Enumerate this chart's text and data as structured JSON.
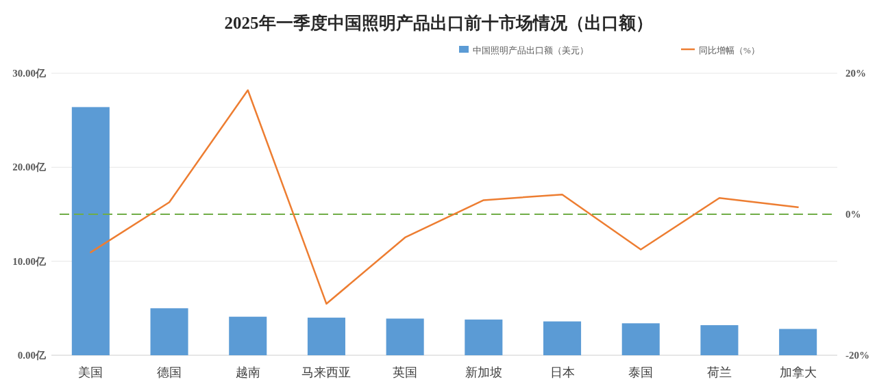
{
  "chart_data": {
    "type": "bar",
    "title": "2025年一季度中国照明产品出口前十市场情况（出口额）",
    "categories": [
      "美国",
      "德国",
      "越南",
      "马来西亚",
      "英国",
      "新加坡",
      "日本",
      "泰国",
      "荷兰",
      "加拿大"
    ],
    "series": [
      {
        "name": "中国照明产品出口额（美元）",
        "color": "#5b9bd5",
        "values": [
          26.4,
          5.0,
          4.1,
          4.0,
          3.9,
          3.8,
          3.6,
          3.4,
          3.2,
          2.8
        ]
      },
      {
        "name": "同比增幅（%）",
        "type": "line",
        "axis": "y2",
        "color": "#ed7d31",
        "values": [
          -5.4,
          1.7,
          17.6,
          -12.7,
          -3.3,
          2.0,
          2.8,
          -5.0,
          2.3,
          1.0
        ]
      }
    ],
    "ylim": [
      0,
      30
    ],
    "yticks": [
      {
        "value": 0,
        "label": "0.00亿"
      },
      {
        "value": 10,
        "label": "10.00亿"
      },
      {
        "value": 20,
        "label": "20.00亿"
      },
      {
        "value": 30,
        "label": "30.00亿"
      }
    ],
    "y2lim": [
      -20,
      20
    ],
    "y2ticks": [
      {
        "value": -20,
        "label": "-20%"
      },
      {
        "value": 0,
        "label": "0%"
      },
      {
        "value": 20,
        "label": "20%"
      }
    ],
    "ref_lines": [
      {
        "axis": "y2",
        "value": 0,
        "color": "#70ad47",
        "line_style": "dashed"
      }
    ],
    "grid": "y",
    "legend": "top"
  }
}
